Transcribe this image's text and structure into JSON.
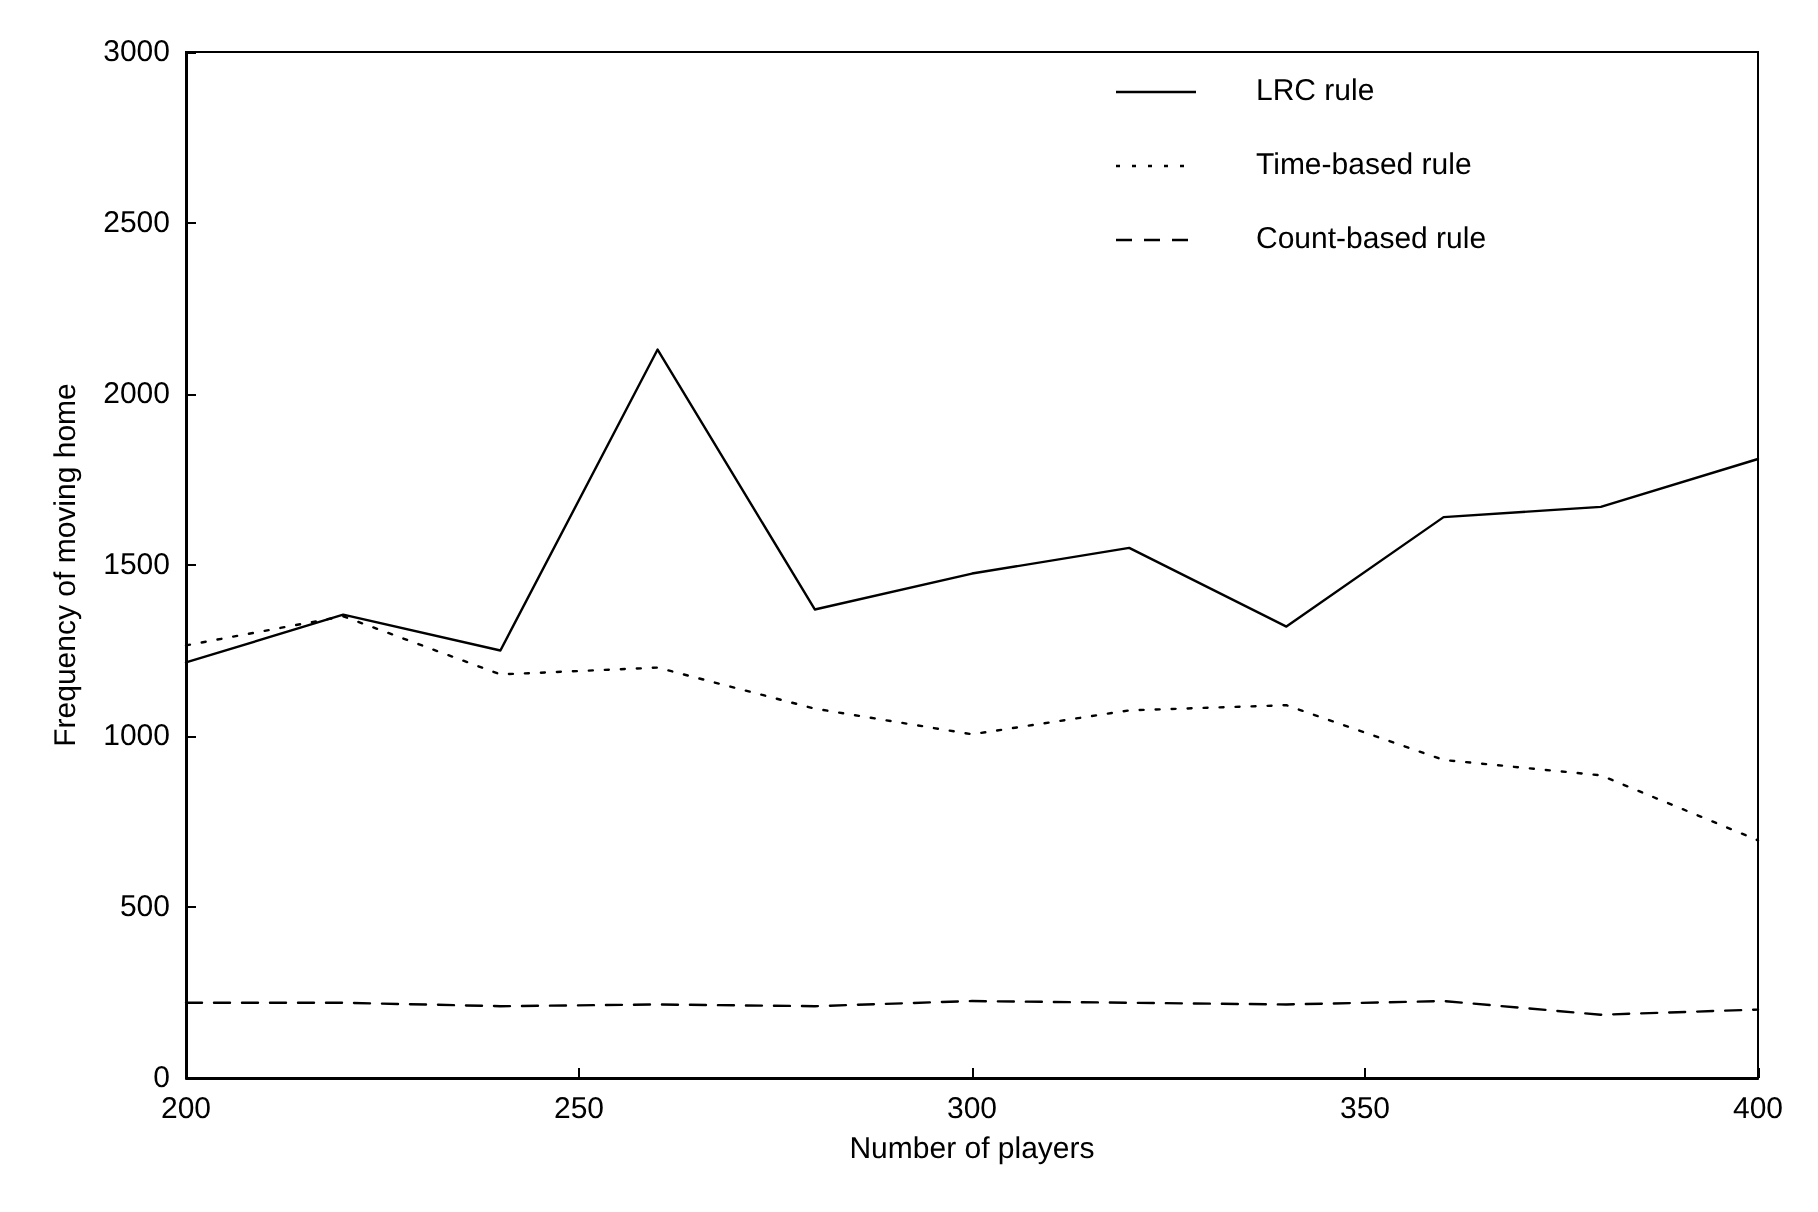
{
  "chart_data": {
    "type": "line",
    "xlabel": "Number of players",
    "ylabel": "Frequency of moving home",
    "x": [
      200,
      220,
      240,
      260,
      280,
      300,
      320,
      340,
      360,
      380,
      400
    ],
    "series": [
      {
        "name": "LRC rule",
        "color": "#000000",
        "line_style": "solid",
        "values": [
          1215,
          1355,
          1250,
          2130,
          1370,
          1475,
          1550,
          1320,
          1640,
          1670,
          1810
        ]
      },
      {
        "name": "Time-based rule",
        "color": "#000000",
        "line_style": "dotted",
        "values": [
          1265,
          1350,
          1180,
          1200,
          1080,
          1005,
          1075,
          1090,
          930,
          885,
          695
        ]
      },
      {
        "name": "Count-based rule",
        "color": "#000000",
        "line_style": "dashed",
        "values": [
          220,
          220,
          210,
          215,
          210,
          225,
          220,
          215,
          225,
          185,
          200
        ]
      }
    ],
    "xlim": [
      200,
      400
    ],
    "xticks": [
      200,
      250,
      300,
      350,
      400
    ],
    "ylim": [
      0,
      3000
    ],
    "yticks": [
      0,
      500,
      1000,
      1500,
      2000,
      2500,
      3000
    ],
    "grid": false,
    "legend": "top right",
    "marker": "none"
  }
}
